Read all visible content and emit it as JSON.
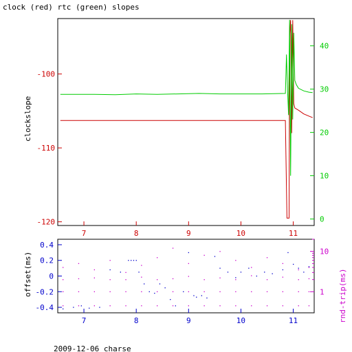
{
  "figure": {
    "title": "clock (red) rtc (green) slopes",
    "footer": "2009-12-06 charse"
  },
  "colors": {
    "clock": "#cc0000",
    "rtc": "#00cc00",
    "offset": "#0000cc",
    "roundtrip": "#cc00cc"
  },
  "chart_data": [
    {
      "type": "line",
      "xlim": [
        6.5,
        11.4
      ],
      "x_ticks": [
        7,
        8,
        9,
        10,
        11
      ],
      "x_tick_labels": [
        "7",
        "8",
        "9",
        "10",
        "11"
      ],
      "ylabel": "clockslope",
      "y_left": {
        "lim": [
          -120.5,
          -92.5
        ],
        "ticks": [
          -100,
          -110,
          -120
        ],
        "tick_labels": [
          "-100",
          "-110",
          "-120"
        ]
      },
      "y_right": {
        "lim": [
          -1.5,
          46.3
        ],
        "ticks": [
          0,
          10,
          20,
          30,
          40
        ],
        "tick_labels": [
          "0",
          "10",
          "20",
          "30",
          "40"
        ]
      },
      "series": [
        {
          "axis": "left",
          "color": "#cc0000",
          "points": [
            [
              6.55,
              -106.3
            ],
            [
              10.85,
              -106.3
            ],
            [
              10.86,
              -111.0
            ],
            [
              10.88,
              -119.5
            ],
            [
              10.92,
              -119.5
            ],
            [
              10.93,
              -95.0
            ],
            [
              10.95,
              -92.7
            ],
            [
              10.97,
              -108.0
            ],
            [
              10.99,
              -92.7
            ],
            [
              11.01,
              -104.0
            ],
            [
              11.03,
              -104.6
            ],
            [
              11.1,
              -104.9
            ],
            [
              11.2,
              -105.4
            ],
            [
              11.3,
              -105.7
            ],
            [
              11.37,
              -105.9
            ]
          ]
        },
        {
          "axis": "right",
          "color": "#00cc00",
          "points": [
            [
              6.55,
              28.8
            ],
            [
              7.2,
              28.8
            ],
            [
              7.6,
              28.7
            ],
            [
              8.0,
              28.9
            ],
            [
              8.4,
              28.8
            ],
            [
              8.8,
              28.9
            ],
            [
              9.2,
              29.0
            ],
            [
              9.6,
              28.9
            ],
            [
              10.0,
              28.9
            ],
            [
              10.4,
              28.9
            ],
            [
              10.85,
              29.0
            ],
            [
              10.87,
              38.0
            ],
            [
              10.89,
              30.0
            ],
            [
              10.91,
              24.0
            ],
            [
              10.93,
              46.0
            ],
            [
              10.95,
              10.0
            ],
            [
              10.97,
              45.0
            ],
            [
              10.99,
              23.0
            ],
            [
              11.01,
              43.0
            ],
            [
              11.03,
              32.0
            ],
            [
              11.06,
              31.0
            ],
            [
              11.1,
              30.2
            ],
            [
              11.2,
              29.6
            ],
            [
              11.3,
              29.3
            ],
            [
              11.37,
              29.2
            ]
          ]
        }
      ]
    },
    {
      "type": "scatter",
      "xlim": [
        6.5,
        11.4
      ],
      "x_ticks": [
        7,
        8,
        9,
        10,
        11
      ],
      "x_tick_labels": [
        "7",
        "8",
        "9",
        "10",
        "11"
      ],
      "ylabel_left": "offset(ms)",
      "ylabel_right": "rnd-trip(ms)",
      "y_left": {
        "lim": [
          -0.47,
          0.47
        ],
        "ticks": [
          0.4,
          0.2,
          0,
          -0.2,
          -0.4
        ],
        "tick_labels": [
          "0.4",
          "0.2",
          "0",
          "-0.2",
          "-0.4"
        ]
      },
      "y_right": {
        "scale": "log",
        "lim": [
          0.3,
          20
        ],
        "ticks": [
          1,
          10
        ],
        "tick_labels": [
          "1",
          "10"
        ]
      },
      "series": [
        {
          "axis": "left",
          "color": "#0000cc",
          "points": [
            [
              6.6,
              -0.42
            ],
            [
              6.8,
              -0.4
            ],
            [
              6.95,
              -0.38
            ],
            [
              7.1,
              -0.41
            ],
            [
              7.3,
              -0.4
            ],
            [
              7.5,
              0.08
            ],
            [
              7.7,
              0.05
            ],
            [
              7.85,
              0.2
            ],
            [
              7.9,
              0.2
            ],
            [
              7.95,
              0.2
            ],
            [
              8.0,
              0.2
            ],
            [
              8.05,
              0.05
            ],
            [
              8.15,
              -0.1
            ],
            [
              8.25,
              -0.2
            ],
            [
              8.35,
              -0.22
            ],
            [
              8.45,
              -0.1
            ],
            [
              8.55,
              -0.15
            ],
            [
              8.65,
              -0.3
            ],
            [
              8.75,
              -0.38
            ],
            [
              8.9,
              -0.2
            ],
            [
              9.0,
              0.3
            ],
            [
              9.1,
              -0.25
            ],
            [
              9.15,
              -0.27
            ],
            [
              9.25,
              -0.25
            ],
            [
              9.35,
              -0.28
            ],
            [
              9.5,
              0.25
            ],
            [
              9.6,
              0.1
            ],
            [
              9.75,
              0.05
            ],
            [
              9.9,
              -0.02
            ],
            [
              10.0,
              0.05
            ],
            [
              10.15,
              0.1
            ],
            [
              10.3,
              0.0
            ],
            [
              10.45,
              0.05
            ],
            [
              10.6,
              0.03
            ],
            [
              10.8,
              0.08
            ],
            [
              10.9,
              0.3
            ],
            [
              11.0,
              0.15
            ],
            [
              11.1,
              0.1
            ],
            [
              11.2,
              0.05
            ],
            [
              11.3,
              0.12
            ]
          ]
        },
        {
          "axis": "right",
          "color": "#cc00cc",
          "points": [
            [
              6.6,
              0.45
            ],
            [
              6.6,
              1.0
            ],
            [
              6.6,
              2.0
            ],
            [
              6.6,
              4.0
            ],
            [
              6.9,
              0.45
            ],
            [
              6.9,
              1.0
            ],
            [
              6.9,
              2.1
            ],
            [
              6.9,
              5.0
            ],
            [
              7.2,
              0.45
            ],
            [
              7.2,
              1.0
            ],
            [
              7.2,
              2.2
            ],
            [
              7.2,
              3.5
            ],
            [
              7.5,
              0.45
            ],
            [
              7.5,
              1.0
            ],
            [
              7.5,
              2.0
            ],
            [
              7.5,
              6.0
            ],
            [
              7.8,
              0.45
            ],
            [
              7.8,
              1.0
            ],
            [
              7.8,
              2.0
            ],
            [
              7.8,
              3.0
            ],
            [
              8.1,
              0.45
            ],
            [
              8.1,
              1.0
            ],
            [
              8.1,
              2.3
            ],
            [
              8.1,
              4.5
            ],
            [
              8.4,
              0.45
            ],
            [
              8.4,
              1.0
            ],
            [
              8.4,
              2.0
            ],
            [
              8.4,
              7.0
            ],
            [
              8.7,
              0.45
            ],
            [
              8.7,
              1.0
            ],
            [
              8.7,
              2.1
            ],
            [
              8.7,
              12.0
            ],
            [
              9.0,
              0.45
            ],
            [
              9.0,
              1.0
            ],
            [
              9.0,
              2.4
            ],
            [
              9.0,
              5.0
            ],
            [
              9.3,
              0.45
            ],
            [
              9.3,
              1.0
            ],
            [
              9.3,
              2.0
            ],
            [
              9.3,
              8.0
            ],
            [
              9.6,
              0.45
            ],
            [
              9.6,
              1.0
            ],
            [
              9.6,
              2.2
            ],
            [
              9.6,
              10.0
            ],
            [
              9.9,
              0.45
            ],
            [
              9.9,
              1.0
            ],
            [
              9.9,
              2.0
            ],
            [
              9.9,
              6.0
            ],
            [
              10.2,
              0.45
            ],
            [
              10.2,
              1.0
            ],
            [
              10.2,
              2.5
            ],
            [
              10.2,
              4.0
            ],
            [
              10.5,
              0.45
            ],
            [
              10.5,
              1.0
            ],
            [
              10.5,
              2.0
            ],
            [
              10.5,
              7.0
            ],
            [
              10.8,
              0.45
            ],
            [
              10.8,
              1.0
            ],
            [
              10.8,
              2.3
            ],
            [
              10.8,
              5.0
            ],
            [
              11.1,
              0.45
            ],
            [
              11.1,
              1.0
            ],
            [
              11.1,
              2.0
            ],
            [
              11.1,
              3.5
            ],
            [
              11.3,
              0.45
            ],
            [
              11.3,
              1.0
            ],
            [
              11.3,
              2.1
            ],
            [
              11.3,
              4.0
            ]
          ]
        }
      ]
    }
  ]
}
